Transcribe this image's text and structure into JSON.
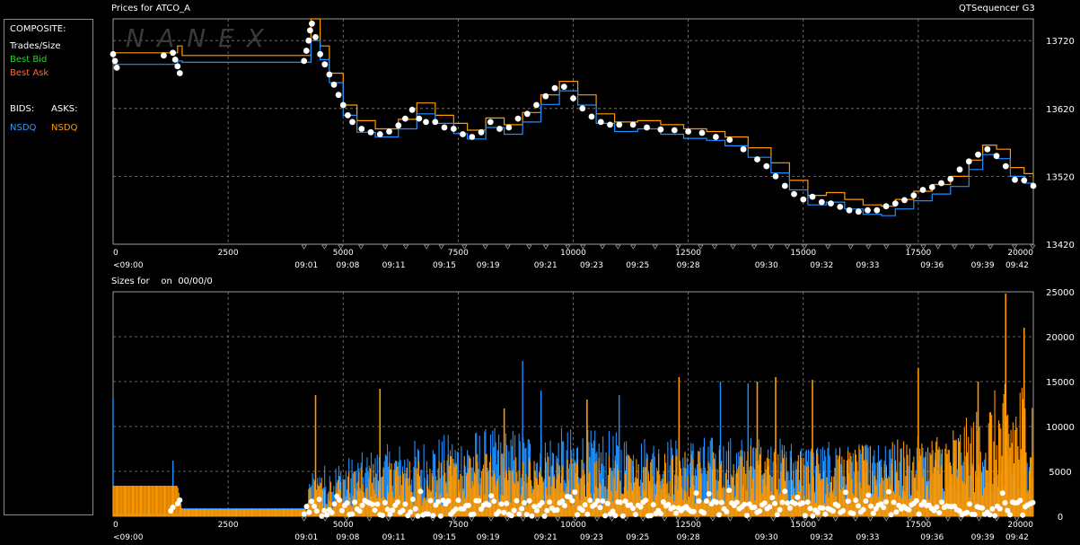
{
  "header": {
    "title": "Prices for ATCO_A",
    "app_name": "QTSequencer G3",
    "sizes_title": "Sizes for    on  00/00/0",
    "watermark": "NANEX"
  },
  "legend": {
    "composite": "COMPOSITE:",
    "trades": "Trades/Size",
    "best_bid": "Best Bid",
    "best_ask": "Best Ask",
    "bids": "BIDS:",
    "asks": "ASKS:",
    "bid_exchange": "NSDQ",
    "ask_exchange": "NSDQ"
  },
  "colors": {
    "bid": "#1e90ff",
    "ask": "#ff9900",
    "trade": "#ffffff",
    "best_bid": "#33cc33",
    "best_ask": "#ff6633",
    "grid": "#808080"
  },
  "chart_data": [
    {
      "type": "line",
      "name": "price",
      "x_ticks": [
        "0",
        "2500",
        "5000",
        "7500",
        "10000",
        "12500",
        "15000",
        "17500",
        "20000"
      ],
      "x_tick_values": [
        0,
        2500,
        5000,
        7500,
        10000,
        12500,
        15000,
        17500,
        20000
      ],
      "time_labels": [
        "<09:00",
        "09:01",
        "09:08",
        "09:11",
        "09:15",
        "09:19",
        "09:21",
        "09:23",
        "09:25",
        "09:28",
        "09:30",
        "09:32",
        "09:33",
        "09:36",
        "09:39",
        "09:42"
      ],
      "time_label_x": [
        0,
        4200,
        5100,
        6100,
        7200,
        8150,
        9400,
        10400,
        11400,
        12500,
        14200,
        15400,
        16400,
        17800,
        18900,
        19900
      ],
      "y_ticks": [
        "13420",
        "13520",
        "13620",
        "13720"
      ],
      "y_tick_values": [
        13420,
        13520,
        13620,
        13720
      ],
      "xlim": [
        0,
        20000
      ],
      "ylim": [
        13420,
        13752
      ],
      "bid": [
        [
          0,
          13685
        ],
        [
          1300,
          13685
        ],
        [
          1400,
          13690
        ],
        [
          1500,
          13688
        ],
        [
          4100,
          13688
        ],
        [
          4300,
          13720
        ],
        [
          4500,
          13692
        ],
        [
          4700,
          13658
        ],
        [
          5000,
          13610
        ],
        [
          5300,
          13585
        ],
        [
          5700,
          13578
        ],
        [
          6200,
          13590
        ],
        [
          6600,
          13612
        ],
        [
          7000,
          13598
        ],
        [
          7400,
          13583
        ],
        [
          7700,
          13575
        ],
        [
          8100,
          13592
        ],
        [
          8500,
          13582
        ],
        [
          8900,
          13600
        ],
        [
          9300,
          13626
        ],
        [
          9700,
          13646
        ],
        [
          10100,
          13625
        ],
        [
          10500,
          13598
        ],
        [
          10900,
          13586
        ],
        [
          11400,
          13590
        ],
        [
          11900,
          13582
        ],
        [
          12400,
          13576
        ],
        [
          12900,
          13573
        ],
        [
          13300,
          13565
        ],
        [
          13800,
          13548
        ],
        [
          14300,
          13525
        ],
        [
          14700,
          13500
        ],
        [
          15100,
          13478
        ],
        [
          15500,
          13482
        ],
        [
          15900,
          13472
        ],
        [
          16300,
          13464
        ],
        [
          16700,
          13462
        ],
        [
          17000,
          13472
        ],
        [
          17400,
          13484
        ],
        [
          17800,
          13494
        ],
        [
          18200,
          13505
        ],
        [
          18600,
          13530
        ],
        [
          18900,
          13552
        ],
        [
          19200,
          13546
        ],
        [
          19500,
          13520
        ],
        [
          19800,
          13510
        ],
        [
          20000,
          13502
        ]
      ],
      "ask": [
        [
          0,
          13702
        ],
        [
          1300,
          13702
        ],
        [
          1400,
          13712
        ],
        [
          1500,
          13698
        ],
        [
          4100,
          13698
        ],
        [
          4300,
          13752
        ],
        [
          4500,
          13712
        ],
        [
          4700,
          13672
        ],
        [
          5000,
          13625
        ],
        [
          5300,
          13602
        ],
        [
          5700,
          13590
        ],
        [
          6200,
          13604
        ],
        [
          6600,
          13628
        ],
        [
          7000,
          13610
        ],
        [
          7400,
          13598
        ],
        [
          7700,
          13588
        ],
        [
          8100,
          13606
        ],
        [
          8500,
          13596
        ],
        [
          8900,
          13614
        ],
        [
          9300,
          13640
        ],
        [
          9700,
          13660
        ],
        [
          10100,
          13640
        ],
        [
          10500,
          13612
        ],
        [
          10900,
          13600
        ],
        [
          11400,
          13602
        ],
        [
          11900,
          13596
        ],
        [
          12400,
          13590
        ],
        [
          12900,
          13586
        ],
        [
          13300,
          13578
        ],
        [
          13800,
          13562
        ],
        [
          14300,
          13540
        ],
        [
          14700,
          13514
        ],
        [
          15100,
          13492
        ],
        [
          15500,
          13496
        ],
        [
          15900,
          13486
        ],
        [
          16300,
          13478
        ],
        [
          16700,
          13476
        ],
        [
          17000,
          13486
        ],
        [
          17400,
          13498
        ],
        [
          17800,
          13508
        ],
        [
          18200,
          13520
        ],
        [
          18600,
          13544
        ],
        [
          18900,
          13566
        ],
        [
          19200,
          13560
        ],
        [
          19500,
          13533
        ],
        [
          19800,
          13524
        ],
        [
          20000,
          13518
        ]
      ],
      "trades": [
        [
          0,
          13700
        ],
        [
          40,
          13690
        ],
        [
          80,
          13680
        ],
        [
          1100,
          13698
        ],
        [
          1300,
          13702
        ],
        [
          1350,
          13692
        ],
        [
          1400,
          13682
        ],
        [
          1450,
          13672
        ],
        [
          4150,
          13690
        ],
        [
          4200,
          13705
        ],
        [
          4250,
          13720
        ],
        [
          4280,
          13735
        ],
        [
          4320,
          13745
        ],
        [
          4400,
          13725
        ],
        [
          4500,
          13700
        ],
        [
          4600,
          13685
        ],
        [
          4700,
          13670
        ],
        [
          4800,
          13655
        ],
        [
          4900,
          13640
        ],
        [
          5000,
          13625
        ],
        [
          5100,
          13610
        ],
        [
          5200,
          13600
        ],
        [
          5400,
          13590
        ],
        [
          5600,
          13585
        ],
        [
          5800,
          13582
        ],
        [
          6000,
          13586
        ],
        [
          6200,
          13595
        ],
        [
          6350,
          13605
        ],
        [
          6500,
          13618
        ],
        [
          6650,
          13605
        ],
        [
          6800,
          13600
        ],
        [
          7000,
          13600
        ],
        [
          7200,
          13592
        ],
        [
          7400,
          13590
        ],
        [
          7600,
          13582
        ],
        [
          7800,
          13578
        ],
        [
          8000,
          13585
        ],
        [
          8200,
          13600
        ],
        [
          8400,
          13590
        ],
        [
          8600,
          13592
        ],
        [
          8800,
          13605
        ],
        [
          9000,
          13612
        ],
        [
          9200,
          13625
        ],
        [
          9400,
          13638
        ],
        [
          9600,
          13650
        ],
        [
          9800,
          13652
        ],
        [
          10000,
          13635
        ],
        [
          10200,
          13620
        ],
        [
          10400,
          13608
        ],
        [
          10600,
          13600
        ],
        [
          10800,
          13596
        ],
        [
          11000,
          13596
        ],
        [
          11300,
          13596
        ],
        [
          11600,
          13592
        ],
        [
          11900,
          13589
        ],
        [
          12200,
          13588
        ],
        [
          12500,
          13586
        ],
        [
          12800,
          13584
        ],
        [
          13100,
          13578
        ],
        [
          13400,
          13574
        ],
        [
          13700,
          13560
        ],
        [
          14000,
          13545
        ],
        [
          14200,
          13535
        ],
        [
          14400,
          13520
        ],
        [
          14600,
          13506
        ],
        [
          14800,
          13494
        ],
        [
          15000,
          13486
        ],
        [
          15200,
          13490
        ],
        [
          15400,
          13482
        ],
        [
          15600,
          13480
        ],
        [
          15800,
          13475
        ],
        [
          16000,
          13470
        ],
        [
          16200,
          13468
        ],
        [
          16400,
          13470
        ],
        [
          16600,
          13470
        ],
        [
          16800,
          13476
        ],
        [
          17000,
          13480
        ],
        [
          17200,
          13485
        ],
        [
          17400,
          13492
        ],
        [
          17600,
          13500
        ],
        [
          17800,
          13504
        ],
        [
          18000,
          13510
        ],
        [
          18200,
          13516
        ],
        [
          18400,
          13530
        ],
        [
          18600,
          13542
        ],
        [
          18800,
          13552
        ],
        [
          19000,
          13560
        ],
        [
          19200,
          13550
        ],
        [
          19400,
          13535
        ],
        [
          19600,
          13515
        ],
        [
          19800,
          13514
        ],
        [
          20000,
          13506
        ]
      ]
    },
    {
      "type": "bar",
      "name": "sizes",
      "x_ticks": [
        "0",
        "2500",
        "5000",
        "7500",
        "10000",
        "12500",
        "15000",
        "17500",
        "20000"
      ],
      "x_tick_values": [
        0,
        2500,
        5000,
        7500,
        10000,
        12500,
        15000,
        17500,
        20000
      ],
      "time_labels": [
        "<09:00",
        "09:01",
        "09:08",
        "09:11",
        "09:15",
        "09:19",
        "09:21",
        "09:23",
        "09:25",
        "09:28",
        "09:30",
        "09:32",
        "09:33",
        "09:36",
        "09:39",
        "09:42"
      ],
      "time_label_x": [
        0,
        4200,
        5100,
        6100,
        7200,
        8150,
        9400,
        10400,
        11400,
        12500,
        14200,
        15400,
        16400,
        17800,
        18900,
        19900
      ],
      "y_ticks": [
        "0",
        "5000",
        "10000",
        "15000",
        "20000",
        "25000"
      ],
      "y_tick_values": [
        0,
        5000,
        10000,
        15000,
        20000,
        25000
      ],
      "xlim": [
        0,
        20000
      ],
      "ylim": [
        0,
        25000
      ],
      "ask_profile": [
        [
          0,
          3400
        ],
        [
          1400,
          3400
        ],
        [
          1500,
          800
        ],
        [
          4200,
          800
        ],
        [
          4300,
          2500
        ],
        [
          6000,
          3500
        ],
        [
          8000,
          4000
        ],
        [
          10000,
          3800
        ],
        [
          12000,
          4000
        ],
        [
          14000,
          4500
        ],
        [
          16000,
          4300
        ],
        [
          17500,
          5000
        ],
        [
          18500,
          6000
        ],
        [
          19200,
          8000
        ],
        [
          20000,
          9000
        ]
      ],
      "bid_profile": [
        [
          0,
          300
        ],
        [
          1400,
          300
        ],
        [
          1500,
          900
        ],
        [
          4200,
          900
        ],
        [
          4300,
          3000
        ],
        [
          6000,
          4500
        ],
        [
          8000,
          5500
        ],
        [
          10000,
          5500
        ],
        [
          12000,
          5000
        ],
        [
          14000,
          5000
        ],
        [
          16000,
          4500
        ],
        [
          17500,
          4500
        ],
        [
          18500,
          4000
        ],
        [
          20000,
          4000
        ]
      ],
      "ask_spikes": [
        [
          4400,
          13500
        ],
        [
          5800,
          14200
        ],
        [
          8500,
          12000
        ],
        [
          10300,
          13000
        ],
        [
          12300,
          15500
        ],
        [
          14000,
          15000
        ],
        [
          14400,
          15500
        ],
        [
          15200,
          15200
        ],
        [
          17500,
          16500
        ],
        [
          18800,
          15000
        ],
        [
          19400,
          24800
        ],
        [
          19800,
          21000
        ]
      ],
      "bid_spikes": [
        [
          0,
          13200
        ],
        [
          1300,
          6200
        ],
        [
          8900,
          17300
        ],
        [
          9300,
          14000
        ],
        [
          11000,
          13500
        ],
        [
          13200,
          15000
        ],
        [
          13800,
          14800
        ]
      ],
      "trade_size_band": [
        0,
        1800
      ]
    }
  ]
}
